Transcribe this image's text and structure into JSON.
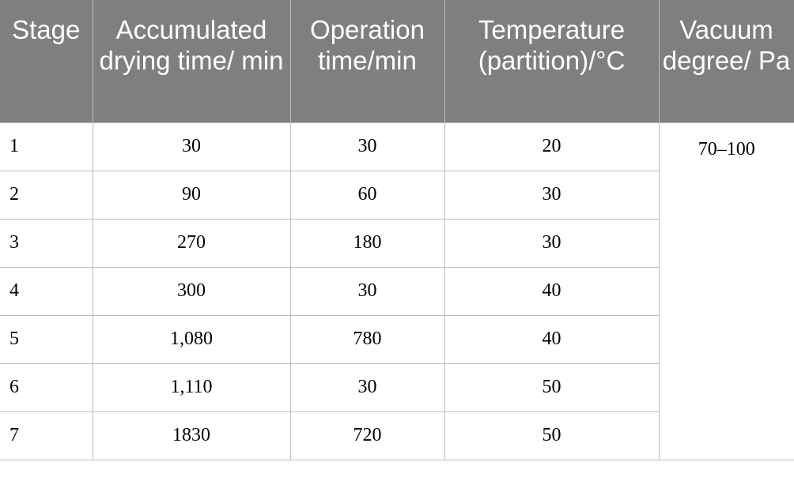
{
  "table": {
    "header": [
      "Stage",
      "Accumulated drying time/ min",
      "Operation time/min",
      "Temperature (partition)/°C",
      "Vacuum degree/ Pa"
    ],
    "rows": [
      [
        "1",
        "30",
        "30",
        "20"
      ],
      [
        "2",
        "90",
        "60",
        "30"
      ],
      [
        "3",
        "270",
        "180",
        "30"
      ],
      [
        "4",
        "300",
        "30",
        "40"
      ],
      [
        "5",
        "1,080",
        "780",
        "40"
      ],
      [
        "6",
        "1,110",
        "30",
        "50"
      ],
      [
        "7",
        "1830",
        "720",
        "50"
      ]
    ],
    "vacuum": "70–100"
  }
}
